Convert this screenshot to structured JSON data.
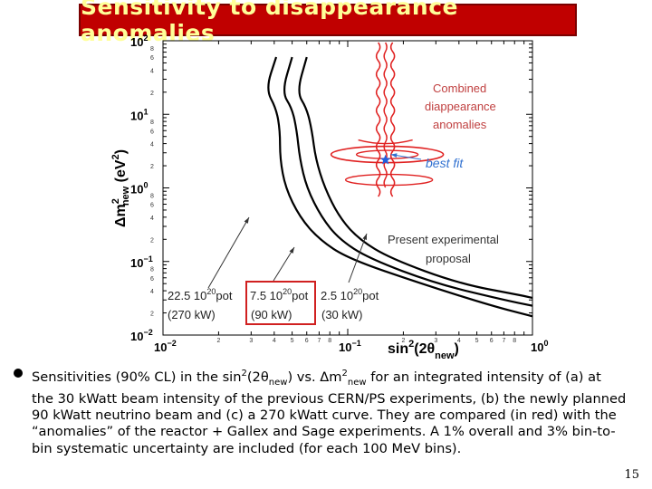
{
  "slide": {
    "title": "Sensitivity to disappearance anomalies",
    "page_number": "15",
    "caption_parts": {
      "p1": "Sensitivities (90% CL) in the sin",
      "sup2": "2",
      "p2": "(2θ",
      "new1": "new",
      "p3": ") vs. Δm",
      "sup2b": "2",
      "new2": "new",
      "p4": " for an integrated intensity of (a) at the 30 kWatt beam intensity of the previous CERN/PS experiments, (b) the newly planned 90 kWatt neutrino beam and (c) a 270 kWatt curve. They are compared (in red) with the “anomalies” of the reactor + Gallex and Sage experiments. A 1% overall and 3% bin-to-bin systematic uncertainty are included (for each 100 MeV bins)."
    }
  },
  "chart_data": {
    "type": "line",
    "xscale": "log",
    "yscale": "log",
    "xlim": [
      0.01,
      1
    ],
    "ylim": [
      0.01,
      100
    ],
    "xlabel": "sin²(2θnew)",
    "ylabel": "Δm²new (eV²)",
    "xlabel_parts": {
      "main": "sin",
      "sup": "2",
      "mid": "(2θ",
      "sub": "new",
      "end": ")"
    },
    "ylabel_parts": {
      "main": "Δm",
      "sup": "2",
      "sub": "new",
      "end": " (eV",
      "sup2": "2",
      "close": ")"
    },
    "x_ticks": [
      {
        "v": 0.01,
        "base": "10",
        "exp": "−2"
      },
      {
        "v": 0.1,
        "base": "10",
        "exp": "−1"
      },
      {
        "v": 1,
        "base": "10",
        "exp": "0"
      }
    ],
    "y_ticks": [
      {
        "v": 0.01,
        "base": "10",
        "exp": "−2"
      },
      {
        "v": 0.1,
        "base": "10",
        "exp": "−1"
      },
      {
        "v": 1,
        "base": "10",
        "exp": "0"
      },
      {
        "v": 10,
        "base": "10",
        "exp": "1"
      },
      {
        "v": 100,
        "base": "10",
        "exp": "2"
      }
    ],
    "minor_labels": [
      "2",
      "4",
      "6",
      "8"
    ],
    "x_minor_labels": [
      "2",
      "3",
      "4",
      "5",
      "6",
      "7",
      "8"
    ],
    "series": [
      {
        "name": "22.5 10²⁰pot (270 kW)",
        "color": "#000000",
        "points": [
          [
            0.041,
            60
          ],
          [
            0.036,
            22
          ],
          [
            0.041,
            12
          ],
          [
            0.043,
            6
          ],
          [
            0.043,
            2.5
          ],
          [
            0.046,
            1
          ],
          [
            0.055,
            0.4
          ],
          [
            0.07,
            0.2
          ],
          [
            0.1,
            0.11
          ],
          [
            0.25,
            0.05
          ],
          [
            0.6,
            0.025
          ],
          [
            1,
            0.018
          ]
        ]
      },
      {
        "name": "7.5 10²⁰pot (90 kW)",
        "color": "#000000",
        "points": [
          [
            0.05,
            60
          ],
          [
            0.044,
            20
          ],
          [
            0.05,
            12
          ],
          [
            0.053,
            6
          ],
          [
            0.055,
            2.5
          ],
          [
            0.06,
            1
          ],
          [
            0.072,
            0.4
          ],
          [
            0.09,
            0.2
          ],
          [
            0.13,
            0.11
          ],
          [
            0.3,
            0.05
          ],
          [
            0.7,
            0.03
          ],
          [
            1,
            0.025
          ]
        ]
      },
      {
        "name": "2.5 10²⁰pot (30 kW)",
        "color": "#000000",
        "points": [
          [
            0.06,
            60
          ],
          [
            0.053,
            20
          ],
          [
            0.06,
            12
          ],
          [
            0.064,
            6
          ],
          [
            0.067,
            2.5
          ],
          [
            0.075,
            1
          ],
          [
            0.09,
            0.4
          ],
          [
            0.115,
            0.2
          ],
          [
            0.17,
            0.11
          ],
          [
            0.4,
            0.05
          ],
          [
            0.85,
            0.035
          ],
          [
            1,
            0.032
          ]
        ]
      }
    ],
    "anomaly_region": {
      "name": "Combined disappearance anomalies",
      "color": "#e02020"
    },
    "best_fit": {
      "x": 0.16,
      "y": 2.4,
      "label": "best fit",
      "color": "#2060e0"
    },
    "annotations": [
      {
        "text": [
          "Combined",
          "diappearance",
          "anomalies"
        ],
        "color": "#c04040"
      },
      {
        "text": [
          "best fit"
        ],
        "color": "#3070d0"
      },
      {
        "text": [
          "Present experimental",
          "proposal"
        ],
        "color": "#333333"
      }
    ],
    "intensity_labels": [
      {
        "line1": "22.5 10",
        "sup": "20",
        "unit": "pot",
        "line2": "(270 kW)"
      },
      {
        "line1": "7.5 10",
        "sup": "20",
        "unit": "pot",
        "line2": "(90 kW)"
      },
      {
        "line1": "2.5 10",
        "sup": "20",
        "unit": "pot",
        "line2": "(30 kW)"
      }
    ],
    "highlight_color": "#d02020"
  }
}
